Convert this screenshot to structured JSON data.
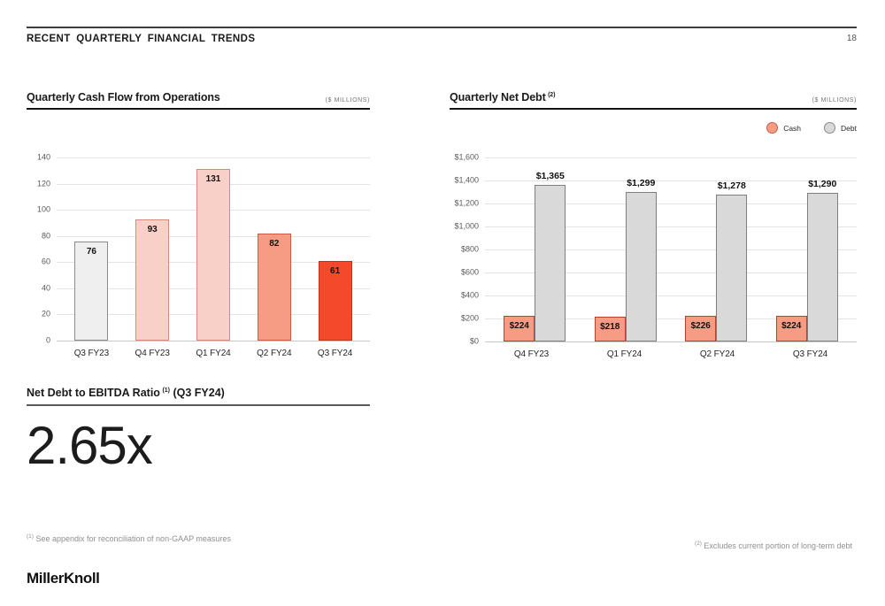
{
  "header": {
    "title": "RECENT QUARTERLY FINANCIAL TRENDS",
    "page_number": "18"
  },
  "chart_data": [
    {
      "type": "bar",
      "title": "Quarterly Cash Flow from Operations",
      "units": "($ MILLIONS)",
      "categories": [
        "Q3 FY23",
        "Q4 FY23",
        "Q1 FY24",
        "Q2 FY24",
        "Q3 FY24"
      ],
      "values": [
        76,
        93,
        131,
        82,
        61
      ],
      "bar_colors": [
        "#efefef",
        "#f9d0c7",
        "#f9d0c7",
        "#f69c84",
        "#f4492a"
      ],
      "bar_borders": [
        "#8a8a8a",
        "#d98a77",
        "#d98a77",
        "#c65d44",
        "#b5361c"
      ],
      "ylim": [
        0,
        140
      ],
      "ytick_step": 20,
      "grid": true,
      "legend": null
    },
    {
      "type": "bar",
      "title": "Quarterly Net Debt",
      "title_sup": "(2)",
      "units": "($ MILLIONS)",
      "categories": [
        "Q4 FY23",
        "Q1 FY24",
        "Q2 FY24",
        "Q3 FY24"
      ],
      "series": [
        {
          "name": "Cash",
          "values": [
            224,
            218,
            226,
            224
          ],
          "labels": [
            "$224",
            "$218",
            "$226",
            "$224"
          ],
          "color": "#f69c84",
          "border": "#b5432a",
          "label_pos": "inside"
        },
        {
          "name": "Debt",
          "values": [
            1365,
            1299,
            1278,
            1290
          ],
          "labels": [
            "$1,365",
            "$1,299",
            "$1,278",
            "$1,290"
          ],
          "color": "#d9d9d9",
          "border": "#7f7f7f",
          "label_pos": "above"
        }
      ],
      "ylim": [
        0,
        1600
      ],
      "ytick_step": 200,
      "ytick_labels": [
        "$0",
        "$200",
        "$400",
        "$600",
        "$800",
        "$1,000",
        "$1,200",
        "$1,400",
        "$1,600"
      ],
      "grid": true,
      "legend_position": "top-right"
    }
  ],
  "ratio": {
    "title": "Net Debt to EBITDA Ratio",
    "sup": "(1)",
    "qualifier": "(Q3 FY24)",
    "value": "2.65x"
  },
  "footnotes": {
    "left": {
      "sup": "(1)",
      "text": "See appendix for reconciliation of non-GAAP measures"
    },
    "right": {
      "sup": "(2)",
      "text": "Excludes current portion of long-term debt"
    }
  },
  "footer": {
    "logo": "MillerKnoll"
  }
}
